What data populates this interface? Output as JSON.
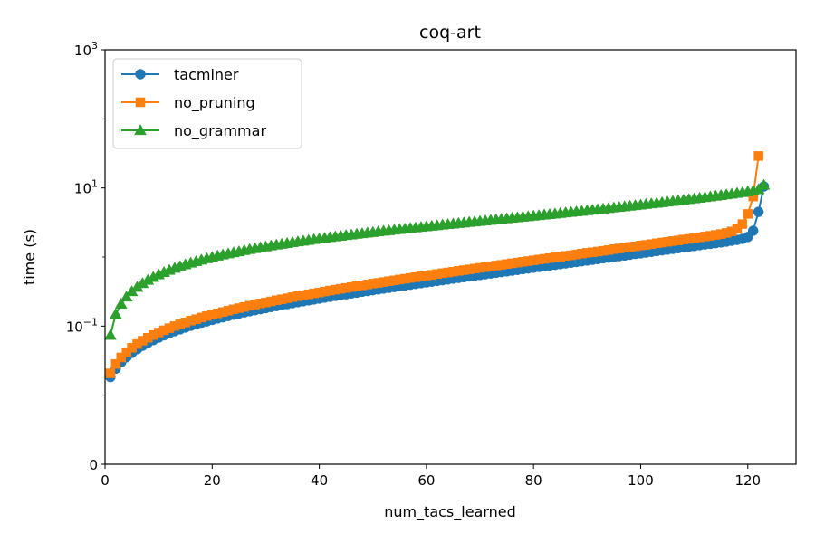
{
  "chart_data": {
    "type": "line",
    "title": "coq-art",
    "xlabel": "num_tacs_learned",
    "ylabel": "time (s)",
    "xlim": [
      0,
      129
    ],
    "x_ticks": [
      0,
      20,
      40,
      60,
      80,
      100,
      120
    ],
    "y_scale": "symlog",
    "y_linthresh": 0.01,
    "ylim": [
      0,
      1000
    ],
    "y_ticks": [
      {
        "value": 0,
        "label": "0"
      },
      {
        "value": 0.1,
        "label": "10",
        "exp": "−1"
      },
      {
        "value": 10,
        "label": "10",
        "exp": "1"
      },
      {
        "value": 1000,
        "label": "10",
        "exp": "3"
      }
    ],
    "grid": false,
    "legend_position": "top-left",
    "series": [
      {
        "name": "tacminer",
        "color": "#1f77b4",
        "marker": "circle",
        "x": [
          1,
          2,
          3,
          4,
          5,
          6,
          7,
          8,
          9,
          10,
          11,
          12,
          13,
          14,
          15,
          16,
          17,
          18,
          19,
          20,
          21,
          22,
          23,
          24,
          25,
          26,
          27,
          28,
          29,
          30,
          31,
          32,
          33,
          34,
          35,
          36,
          37,
          38,
          39,
          40,
          41,
          42,
          43,
          44,
          45,
          46,
          47,
          48,
          49,
          50,
          51,
          52,
          53,
          54,
          55,
          56,
          57,
          58,
          59,
          60,
          61,
          62,
          63,
          64,
          65,
          66,
          67,
          68,
          69,
          70,
          71,
          72,
          73,
          74,
          75,
          76,
          77,
          78,
          79,
          80,
          81,
          82,
          83,
          84,
          85,
          86,
          87,
          88,
          89,
          90,
          91,
          92,
          93,
          94,
          95,
          96,
          97,
          98,
          99,
          100,
          101,
          102,
          103,
          104,
          105,
          106,
          107,
          108,
          109,
          110,
          111,
          112,
          113,
          114,
          115,
          116,
          117,
          118,
          119,
          120,
          121,
          122,
          123
        ],
        "values": [
          0.0183,
          0.0242,
          0.0299,
          0.0354,
          0.0409,
          0.0464,
          0.0519,
          0.0573,
          0.0627,
          0.0681,
          0.0735,
          0.0789,
          0.0843,
          0.0897,
          0.0952,
          0.101,
          0.106,
          0.112,
          0.117,
          0.123,
          0.129,
          0.134,
          0.14,
          0.146,
          0.152,
          0.158,
          0.164,
          0.17,
          0.176,
          0.182,
          0.189,
          0.195,
          0.202,
          0.208,
          0.215,
          0.222,
          0.229,
          0.236,
          0.243,
          0.25,
          0.258,
          0.265,
          0.273,
          0.281,
          0.289,
          0.297,
          0.305,
          0.314,
          0.322,
          0.331,
          0.34,
          0.349,
          0.358,
          0.368,
          0.377,
          0.387,
          0.397,
          0.408,
          0.418,
          0.429,
          0.44,
          0.451,
          0.462,
          0.474,
          0.486,
          0.498,
          0.51,
          0.523,
          0.536,
          0.549,
          0.563,
          0.577,
          0.591,
          0.605,
          0.62,
          0.635,
          0.651,
          0.667,
          0.683,
          0.7,
          0.717,
          0.734,
          0.752,
          0.77,
          0.789,
          0.808,
          0.828,
          0.848,
          0.869,
          0.89,
          0.912,
          0.934,
          0.957,
          0.98,
          1.0,
          1.03,
          1.05,
          1.08,
          1.11,
          1.13,
          1.16,
          1.19,
          1.22,
          1.25,
          1.28,
          1.31,
          1.34,
          1.38,
          1.41,
          1.44,
          1.48,
          1.52,
          1.55,
          1.59,
          1.63,
          1.67,
          1.72,
          1.77,
          1.83,
          1.95,
          2.4,
          4.5,
          10.5
        ]
      },
      {
        "name": "no_pruning",
        "color": "#ff7f0e",
        "marker": "square",
        "x": [
          1,
          2,
          3,
          4,
          5,
          6,
          7,
          8,
          9,
          10,
          11,
          12,
          13,
          14,
          15,
          16,
          17,
          18,
          19,
          20,
          21,
          22,
          23,
          24,
          25,
          26,
          27,
          28,
          29,
          30,
          31,
          32,
          33,
          34,
          35,
          36,
          37,
          38,
          39,
          40,
          41,
          42,
          43,
          44,
          45,
          46,
          47,
          48,
          49,
          50,
          51,
          52,
          53,
          54,
          55,
          56,
          57,
          58,
          59,
          60,
          61,
          62,
          63,
          64,
          65,
          66,
          67,
          68,
          69,
          70,
          71,
          72,
          73,
          74,
          75,
          76,
          77,
          78,
          79,
          80,
          81,
          82,
          83,
          84,
          85,
          86,
          87,
          88,
          89,
          90,
          91,
          92,
          93,
          94,
          95,
          96,
          97,
          98,
          99,
          100,
          101,
          102,
          103,
          104,
          105,
          106,
          107,
          108,
          109,
          110,
          111,
          112,
          113,
          114,
          115,
          116,
          117,
          118,
          119,
          120,
          121,
          122
        ],
        "values": [
          0.0207,
          0.0283,
          0.0352,
          0.0419,
          0.0485,
          0.055,
          0.0614,
          0.0678,
          0.0742,
          0.0806,
          0.087,
          0.0935,
          0.1,
          0.106,
          0.113,
          0.12,
          0.126,
          0.133,
          0.14,
          0.146,
          0.153,
          0.16,
          0.167,
          0.175,
          0.182,
          0.189,
          0.197,
          0.205,
          0.213,
          0.22,
          0.228,
          0.237,
          0.245,
          0.253,
          0.262,
          0.271,
          0.28,
          0.289,
          0.298,
          0.307,
          0.317,
          0.327,
          0.337,
          0.347,
          0.357,
          0.368,
          0.378,
          0.389,
          0.4,
          0.412,
          0.423,
          0.435,
          0.447,
          0.459,
          0.472,
          0.485,
          0.498,
          0.511,
          0.525,
          0.539,
          0.553,
          0.568,
          0.583,
          0.598,
          0.614,
          0.63,
          0.646,
          0.663,
          0.68,
          0.697,
          0.715,
          0.734,
          0.752,
          0.771,
          0.791,
          0.811,
          0.831,
          0.852,
          0.874,
          0.896,
          0.918,
          0.941,
          0.965,
          0.989,
          1.01,
          1.04,
          1.06,
          1.09,
          1.12,
          1.15,
          1.17,
          1.2,
          1.23,
          1.26,
          1.3,
          1.33,
          1.36,
          1.4,
          1.43,
          1.47,
          1.5,
          1.54,
          1.58,
          1.62,
          1.66,
          1.7,
          1.74,
          1.79,
          1.83,
          1.88,
          1.93,
          1.98,
          2.03,
          2.09,
          2.15,
          2.23,
          2.35,
          2.55,
          3.0,
          4.2,
          7.5,
          29
        ]
      },
      {
        "name": "no_grammar",
        "color": "#2ca02c",
        "marker": "triangle",
        "x": [
          1,
          2,
          3,
          4,
          5,
          6,
          7,
          8,
          9,
          10,
          11,
          12,
          13,
          14,
          15,
          16,
          17,
          18,
          19,
          20,
          21,
          22,
          23,
          24,
          25,
          26,
          27,
          28,
          29,
          30,
          31,
          32,
          33,
          34,
          35,
          36,
          37,
          38,
          39,
          40,
          41,
          42,
          43,
          44,
          45,
          46,
          47,
          48,
          49,
          50,
          51,
          52,
          53,
          54,
          55,
          56,
          57,
          58,
          59,
          60,
          61,
          62,
          63,
          64,
          65,
          66,
          67,
          68,
          69,
          70,
          71,
          72,
          73,
          74,
          75,
          76,
          77,
          78,
          79,
          80,
          81,
          82,
          83,
          84,
          85,
          86,
          87,
          88,
          89,
          90,
          91,
          92,
          93,
          94,
          95,
          96,
          97,
          98,
          99,
          100,
          101,
          102,
          103,
          104,
          105,
          106,
          107,
          108,
          109,
          110,
          111,
          112,
          113,
          114,
          115,
          116,
          117,
          118,
          119,
          120,
          121,
          122,
          123
        ],
        "values": [
          0.074,
          0.149,
          0.209,
          0.265,
          0.317,
          0.367,
          0.416,
          0.463,
          0.51,
          0.556,
          0.601,
          0.646,
          0.691,
          0.735,
          0.778,
          0.822,
          0.865,
          0.908,
          0.951,
          0.993,
          1.04,
          1.08,
          1.12,
          1.16,
          1.2,
          1.25,
          1.29,
          1.33,
          1.37,
          1.41,
          1.46,
          1.5,
          1.54,
          1.58,
          1.63,
          1.67,
          1.71,
          1.75,
          1.8,
          1.84,
          1.88,
          1.93,
          1.97,
          2.01,
          2.06,
          2.1,
          2.15,
          2.19,
          2.24,
          2.28,
          2.33,
          2.38,
          2.42,
          2.47,
          2.52,
          2.56,
          2.61,
          2.66,
          2.71,
          2.76,
          2.81,
          2.86,
          2.92,
          2.97,
          3.02,
          3.08,
          3.13,
          3.19,
          3.24,
          3.3,
          3.36,
          3.42,
          3.48,
          3.54,
          3.6,
          3.67,
          3.73,
          3.8,
          3.86,
          3.93,
          4.0,
          4.08,
          4.15,
          4.22,
          4.3,
          4.38,
          4.46,
          4.54,
          4.62,
          4.71,
          4.8,
          4.89,
          4.98,
          5.07,
          5.17,
          5.27,
          5.37,
          5.48,
          5.58,
          5.69,
          5.81,
          5.92,
          6.04,
          6.16,
          6.29,
          6.42,
          6.55,
          6.69,
          6.84,
          6.99,
          7.14,
          7.3,
          7.47,
          7.64,
          7.82,
          8.01,
          8.2,
          8.41,
          8.62,
          8.84,
          9.08,
          9.5,
          11.0
        ]
      }
    ]
  }
}
